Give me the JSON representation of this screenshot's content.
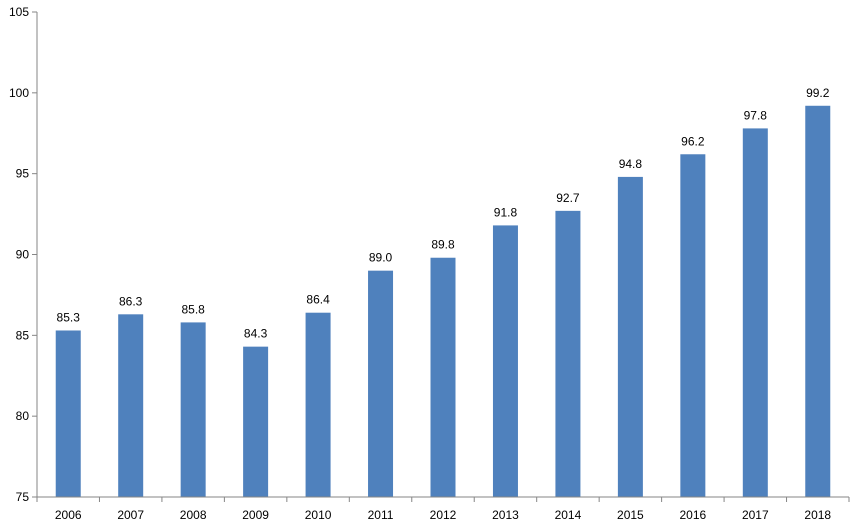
{
  "chart_data": {
    "type": "bar",
    "title": "",
    "xlabel": "",
    "ylabel": "",
    "categories": [
      "2006",
      "2007",
      "2008",
      "2009",
      "2010",
      "2011",
      "2012",
      "2013",
      "2014",
      "2015",
      "2016",
      "2017",
      "2018"
    ],
    "values": [
      85.3,
      86.3,
      85.8,
      84.3,
      86.4,
      89.0,
      89.8,
      91.8,
      92.7,
      94.8,
      96.2,
      97.8,
      99.2
    ],
    "value_labels": [
      "85.3",
      "86.3",
      "85.8",
      "84.3",
      "86.4",
      "89.0",
      "89.8",
      "91.8",
      "92.7",
      "94.8",
      "96.2",
      "97.8",
      "99.2"
    ],
    "ylim": [
      75,
      105
    ],
    "yticks": [
      75,
      80,
      85,
      90,
      95,
      100,
      105
    ],
    "grid": false,
    "legend": "none",
    "bar_color": "#4f81bd",
    "axis_color": "#868686"
  }
}
